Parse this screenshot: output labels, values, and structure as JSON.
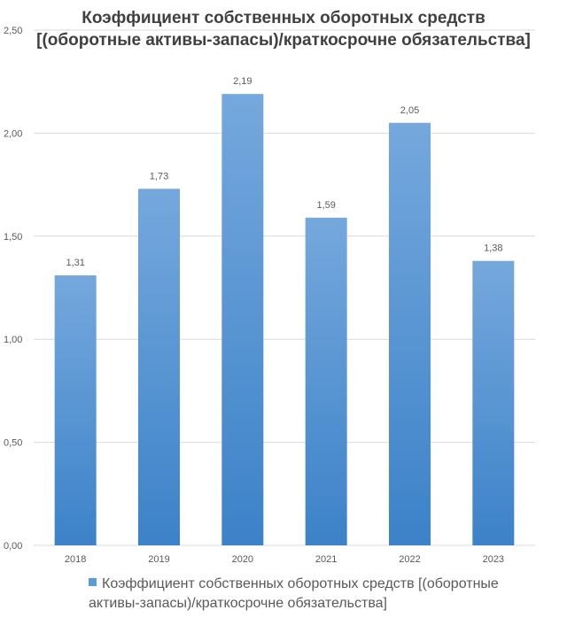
{
  "chart_data": {
    "type": "bar",
    "title": "Коэффициент собственных оборотных средств [(оборотные активы-запасы)/краткосрочне обязательства]",
    "categories": [
      "2018",
      "2019",
      "2020",
      "2021",
      "2022",
      "2023"
    ],
    "series": [
      {
        "name": "Коэффициент собственных оборотных средств [(оборотные активы-запасы)/краткосрочне обязательства]",
        "values": [
          1.31,
          1.73,
          2.19,
          1.59,
          2.05,
          1.38
        ],
        "value_labels": [
          "1,31",
          "1,73",
          "2,19",
          "1,59",
          "2,05",
          "1,38"
        ]
      }
    ],
    "ylim": [
      0,
      2.5
    ],
    "yticks": [
      0,
      0.5,
      1.0,
      1.5,
      2.0,
      2.5
    ],
    "ytick_labels": [
      "0,00",
      "0,50",
      "1,00",
      "1,50",
      "2,00",
      "2,50"
    ],
    "grid": true,
    "legend_position": "bottom",
    "colors": {
      "bar_top": "#75a8dd",
      "bar_bottom": "#3c82c8",
      "legend_swatch": "#5b9bd5",
      "grid": "#d9d9d9",
      "text": "#595959",
      "title": "#404040"
    }
  }
}
